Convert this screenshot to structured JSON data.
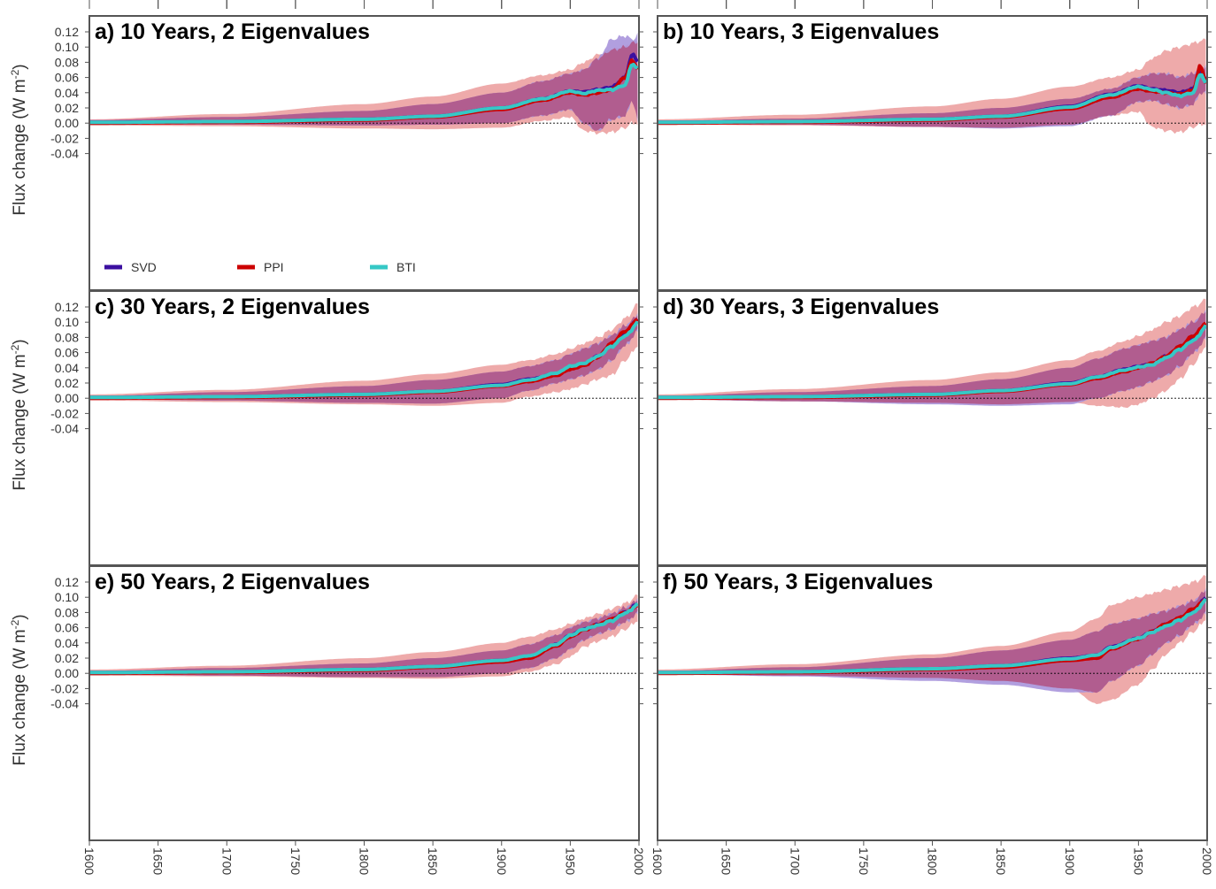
{
  "colors": {
    "svd": "#3b0fa0",
    "ppi": "#cc0000",
    "bti": "#36c8c6",
    "svd_band": "#a995dc",
    "ppi_band": "#eeaaaa",
    "overlap_band": "#b15d8f"
  },
  "chart_data": {
    "type": "line",
    "xlim": [
      1600,
      2000
    ],
    "ylim": [
      -0.05,
      0.13
    ],
    "x_ticks": [
      "1600",
      "1650",
      "1700",
      "1750",
      "1800",
      "1850",
      "1900",
      "1950",
      "2000"
    ],
    "y_ticks": [
      "0.12",
      "0.10",
      "0.08",
      "0.06",
      "0.04",
      "0.02",
      "0.00",
      "-0.02",
      "-0.04"
    ],
    "ylabel": "Flux change (W m",
    "ylabel_sup": "-2",
    "ylabel_end": ")",
    "zero_line": true,
    "legend": [
      {
        "name": "SVD",
        "color_key": "svd"
      },
      {
        "name": "PPI",
        "color_key": "ppi"
      },
      {
        "name": "BTI",
        "color_key": "bti"
      }
    ],
    "panels": [
      {
        "title": "a) 10 Years, 2 Eigenvalues",
        "x": [
          1600,
          1700,
          1800,
          1850,
          1900,
          1930,
          1950,
          1960,
          1970,
          1980,
          1990,
          1995,
          2000
        ],
        "svd": [
          0.001,
          0.002,
          0.005,
          0.009,
          0.02,
          0.032,
          0.042,
          0.041,
          0.044,
          0.047,
          0.06,
          0.09,
          0.08
        ],
        "ppi": [
          0.0,
          0.001,
          0.004,
          0.008,
          0.018,
          0.03,
          0.04,
          0.037,
          0.04,
          0.044,
          0.06,
          0.082,
          0.07
        ],
        "bti": [
          0.001,
          0.002,
          0.005,
          0.009,
          0.02,
          0.032,
          0.042,
          0.039,
          0.043,
          0.044,
          0.05,
          0.078,
          0.07
        ],
        "svd_upper": [
          0.004,
          0.008,
          0.016,
          0.025,
          0.04,
          0.055,
          0.065,
          0.07,
          0.085,
          0.11,
          0.115,
          0.11,
          0.117
        ],
        "svd_lower": [
          -0.001,
          -0.002,
          -0.003,
          -0.002,
          0.0,
          0.01,
          0.018,
          0.0,
          -0.01,
          0.005,
          0.01,
          0.03,
          0.0
        ],
        "ppi_upper": [
          0.005,
          0.012,
          0.025,
          0.035,
          0.052,
          0.063,
          0.07,
          0.08,
          0.09,
          0.096,
          0.1,
          0.105,
          0.107
        ],
        "ppi_lower": [
          -0.003,
          -0.004,
          -0.007,
          -0.008,
          -0.006,
          0.003,
          0.008,
          -0.01,
          -0.013,
          -0.012,
          -0.006,
          0.0,
          0.0
        ]
      },
      {
        "title": "b) 10 Years, 3 Eigenvalues",
        "x": [
          1600,
          1700,
          1800,
          1850,
          1900,
          1930,
          1950,
          1960,
          1970,
          1980,
          1990,
          1995,
          2000
        ],
        "svd": [
          0.001,
          0.002,
          0.005,
          0.009,
          0.022,
          0.038,
          0.049,
          0.045,
          0.043,
          0.04,
          0.045,
          0.07,
          0.055
        ],
        "ppi": [
          0.0,
          0.001,
          0.004,
          0.008,
          0.019,
          0.034,
          0.045,
          0.042,
          0.04,
          0.038,
          0.043,
          0.075,
          0.05
        ],
        "bti": [
          0.001,
          0.002,
          0.005,
          0.009,
          0.021,
          0.037,
          0.048,
          0.044,
          0.04,
          0.036,
          0.04,
          0.065,
          0.05
        ],
        "svd_upper": [
          0.003,
          0.006,
          0.013,
          0.02,
          0.032,
          0.045,
          0.06,
          0.065,
          0.065,
          0.06,
          0.065,
          0.07,
          0.075
        ],
        "svd_lower": [
          -0.001,
          -0.002,
          -0.005,
          -0.007,
          -0.004,
          0.01,
          0.028,
          0.03,
          0.025,
          0.02,
          0.025,
          0.04,
          0.04
        ],
        "ppi_upper": [
          0.005,
          0.011,
          0.022,
          0.032,
          0.048,
          0.06,
          0.07,
          0.085,
          0.095,
          0.1,
          0.105,
          0.108,
          0.11
        ],
        "ppi_lower": [
          -0.002,
          -0.003,
          -0.005,
          -0.006,
          -0.002,
          0.01,
          0.015,
          -0.005,
          -0.01,
          -0.012,
          -0.005,
          -0.002,
          0.0
        ]
      },
      {
        "title": "c) 30 Years, 2 Eigenvalues",
        "x": [
          1600,
          1700,
          1800,
          1850,
          1900,
          1920,
          1940,
          1950,
          1960,
          1970,
          1980,
          1990,
          2000
        ],
        "svd": [
          0.001,
          0.002,
          0.005,
          0.009,
          0.018,
          0.025,
          0.032,
          0.04,
          0.045,
          0.055,
          0.07,
          0.085,
          0.105
        ],
        "ppi": [
          0.0,
          0.001,
          0.004,
          0.008,
          0.016,
          0.022,
          0.03,
          0.038,
          0.043,
          0.054,
          0.072,
          0.088,
          0.105
        ],
        "bti": [
          0.001,
          0.002,
          0.005,
          0.009,
          0.017,
          0.024,
          0.033,
          0.042,
          0.046,
          0.055,
          0.068,
          0.082,
          0.1
        ],
        "svd_upper": [
          0.003,
          0.008,
          0.016,
          0.024,
          0.035,
          0.042,
          0.05,
          0.058,
          0.065,
          0.072,
          0.082,
          0.095,
          0.11
        ],
        "svd_lower": [
          -0.001,
          -0.003,
          -0.006,
          -0.007,
          0.0,
          0.01,
          0.02,
          0.025,
          0.03,
          0.038,
          0.05,
          0.07,
          0.09
        ],
        "ppi_upper": [
          0.005,
          0.011,
          0.023,
          0.032,
          0.044,
          0.05,
          0.058,
          0.065,
          0.072,
          0.08,
          0.09,
          0.105,
          0.125
        ],
        "ppi_lower": [
          -0.003,
          -0.005,
          -0.008,
          -0.01,
          -0.006,
          0.002,
          0.008,
          0.012,
          0.018,
          0.025,
          0.03,
          0.05,
          0.07
        ]
      },
      {
        "title": "d) 30 Years, 3 Eigenvalues",
        "x": [
          1600,
          1700,
          1800,
          1850,
          1900,
          1920,
          1940,
          1950,
          1960,
          1970,
          1980,
          1990,
          2000
        ],
        "svd": [
          0.001,
          0.002,
          0.005,
          0.01,
          0.02,
          0.028,
          0.038,
          0.042,
          0.045,
          0.055,
          0.065,
          0.078,
          0.095
        ],
        "ppi": [
          0.0,
          0.001,
          0.004,
          0.009,
          0.018,
          0.026,
          0.035,
          0.04,
          0.046,
          0.055,
          0.068,
          0.082,
          0.1
        ],
        "bti": [
          0.001,
          0.002,
          0.005,
          0.01,
          0.019,
          0.028,
          0.037,
          0.041,
          0.044,
          0.053,
          0.064,
          0.076,
          0.095
        ],
        "svd_upper": [
          0.003,
          0.008,
          0.016,
          0.025,
          0.04,
          0.052,
          0.065,
          0.07,
          0.075,
          0.08,
          0.09,
          0.1,
          0.115
        ],
        "svd_lower": [
          -0.001,
          -0.004,
          -0.008,
          -0.01,
          -0.008,
          0.0,
          0.01,
          0.015,
          0.022,
          0.03,
          0.042,
          0.06,
          0.08
        ],
        "ppi_upper": [
          0.005,
          0.012,
          0.024,
          0.034,
          0.05,
          0.062,
          0.075,
          0.082,
          0.09,
          0.1,
          0.108,
          0.12,
          0.13
        ],
        "ppi_lower": [
          -0.002,
          -0.004,
          -0.006,
          -0.008,
          -0.005,
          -0.01,
          -0.012,
          -0.008,
          0.0,
          0.01,
          0.025,
          0.045,
          0.07
        ]
      },
      {
        "title": "e) 50 Years, 2 Eigenvalues",
        "x": [
          1600,
          1700,
          1800,
          1850,
          1900,
          1920,
          1940,
          1950,
          1960,
          1970,
          1980,
          1990,
          2000
        ],
        "svd": [
          0.001,
          0.002,
          0.005,
          0.009,
          0.017,
          0.022,
          0.038,
          0.05,
          0.058,
          0.064,
          0.07,
          0.08,
          0.092
        ],
        "ppi": [
          0.0,
          0.001,
          0.004,
          0.008,
          0.015,
          0.02,
          0.036,
          0.048,
          0.057,
          0.064,
          0.071,
          0.08,
          0.09
        ],
        "bti": [
          0.001,
          0.002,
          0.005,
          0.009,
          0.017,
          0.023,
          0.038,
          0.05,
          0.058,
          0.063,
          0.069,
          0.079,
          0.091
        ],
        "svd_upper": [
          0.003,
          0.007,
          0.013,
          0.02,
          0.03,
          0.038,
          0.05,
          0.06,
          0.067,
          0.072,
          0.078,
          0.086,
          0.097
        ],
        "svd_lower": [
          -0.001,
          -0.003,
          -0.005,
          -0.005,
          0.0,
          0.007,
          0.02,
          0.032,
          0.044,
          0.052,
          0.058,
          0.068,
          0.08
        ],
        "ppi_upper": [
          0.005,
          0.01,
          0.02,
          0.028,
          0.04,
          0.048,
          0.058,
          0.065,
          0.072,
          0.078,
          0.085,
          0.092,
          0.103
        ],
        "ppi_lower": [
          -0.003,
          -0.004,
          -0.006,
          -0.007,
          -0.004,
          0.002,
          0.012,
          0.022,
          0.035,
          0.042,
          0.048,
          0.058,
          0.07
        ]
      },
      {
        "title": "f) 50 Years, 3 Eigenvalues",
        "x": [
          1600,
          1700,
          1800,
          1850,
          1900,
          1920,
          1930,
          1950,
          1960,
          1970,
          1980,
          1990,
          2000
        ],
        "svd": [
          0.001,
          0.002,
          0.006,
          0.01,
          0.02,
          0.024,
          0.035,
          0.046,
          0.055,
          0.064,
          0.072,
          0.082,
          0.1
        ],
        "ppi": [
          0.0,
          0.001,
          0.005,
          0.008,
          0.017,
          0.02,
          0.032,
          0.045,
          0.055,
          0.065,
          0.073,
          0.085,
          0.098
        ],
        "bti": [
          0.001,
          0.002,
          0.006,
          0.01,
          0.019,
          0.024,
          0.034,
          0.046,
          0.054,
          0.062,
          0.07,
          0.08,
          0.097
        ],
        "svd_upper": [
          0.003,
          0.008,
          0.02,
          0.03,
          0.044,
          0.055,
          0.065,
          0.072,
          0.078,
          0.082,
          0.088,
          0.095,
          0.11
        ],
        "svd_lower": [
          -0.001,
          -0.004,
          -0.01,
          -0.015,
          -0.025,
          -0.025,
          -0.01,
          0.01,
          0.025,
          0.04,
          0.05,
          0.065,
          0.08
        ],
        "ppi_upper": [
          0.005,
          0.012,
          0.025,
          0.036,
          0.055,
          0.072,
          0.09,
          0.1,
          0.105,
          0.11,
          0.115,
          0.12,
          0.128
        ],
        "ppi_lower": [
          -0.002,
          -0.003,
          -0.006,
          -0.01,
          -0.02,
          -0.04,
          -0.035,
          -0.015,
          0.005,
          0.025,
          0.04,
          0.055,
          0.072
        ]
      }
    ]
  }
}
